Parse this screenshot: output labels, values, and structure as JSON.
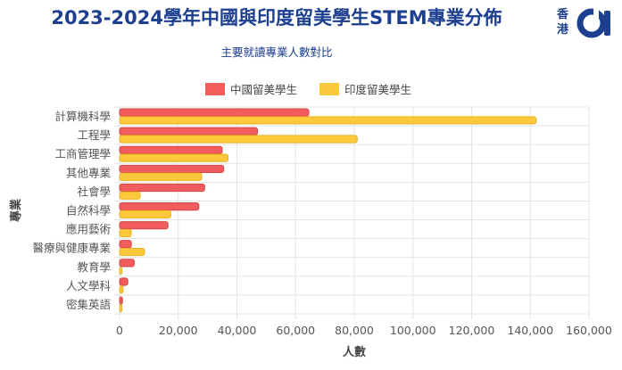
{
  "header": {
    "title": "2023-2024學年中國與印度留美學生STEM專業分佈",
    "subtitle": "主要就讀專業人數對比",
    "logo_line1": "香",
    "logo_line2": "港"
  },
  "chart_data": {
    "type": "bar",
    "orientation": "horizontal",
    "categories": [
      "計算機科學",
      "工程學",
      "工商管理學",
      "其他專業",
      "社會學",
      "自然科學",
      "應用藝術",
      "醫療與健康專業",
      "教育學",
      "人文學科",
      "密集英語"
    ],
    "series": [
      {
        "name": "中國留美學生",
        "color": "#f25c5c",
        "values": [
          64500,
          47000,
          35000,
          35500,
          29000,
          27000,
          16500,
          4000,
          5000,
          2800,
          1000
        ]
      },
      {
        "name": "印度留美學生",
        "color": "#fdc93a",
        "values": [
          142000,
          81000,
          37000,
          28000,
          7000,
          17500,
          4000,
          8500,
          800,
          1200,
          800
        ]
      }
    ],
    "xlim": [
      0,
      160000
    ],
    "xticks": [
      "0",
      "20,000",
      "40,000",
      "60,000",
      "80,000",
      "100,000",
      "120,000",
      "140,000",
      "160,000"
    ],
    "xlabel": "人數",
    "ylabel": "專業",
    "grid": true,
    "legend_position": "top"
  }
}
